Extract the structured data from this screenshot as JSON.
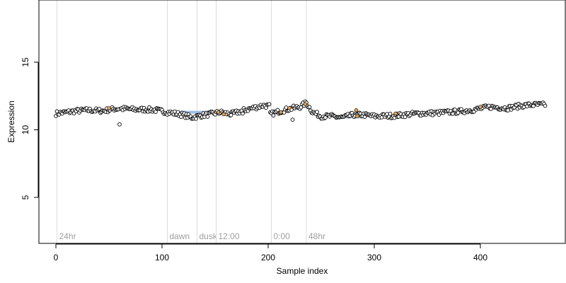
{
  "chart_data": {
    "type": "scatter",
    "xlabel": "Sample index",
    "ylabel": "Expression",
    "xlim": [
      -16,
      480
    ],
    "ylim": [
      1.6,
      19.6
    ],
    "xticks": [
      0,
      100,
      200,
      300,
      400
    ],
    "yticks": [
      5,
      10,
      15
    ],
    "grid": false,
    "colors": {
      "point_fill": "#ffffff",
      "point_stroke": "#000000",
      "vline": "#dcdcdc",
      "vline_label": "#a0a0a0",
      "orange": "#e8a04f",
      "blue": "#8fb4e3"
    },
    "vlines": [
      {
        "x": 1,
        "label": "24hr"
      },
      {
        "x": 105,
        "label": "dawn"
      },
      {
        "x": 133,
        "label": "dusk"
      },
      {
        "x": 151,
        "label": "12:00"
      },
      {
        "x": 203,
        "label": "0:00"
      },
      {
        "x": 236,
        "label": "48hr"
      }
    ],
    "trend_knots": [
      [
        0,
        11.2
      ],
      [
        10,
        11.3
      ],
      [
        20,
        11.4
      ],
      [
        30,
        11.45
      ],
      [
        45,
        11.4
      ],
      [
        55,
        11.55
      ],
      [
        65,
        11.55
      ],
      [
        75,
        11.5
      ],
      [
        85,
        11.5
      ],
      [
        95,
        11.45
      ],
      [
        105,
        11.3
      ],
      [
        113,
        11.2
      ],
      [
        120,
        11.1
      ],
      [
        128,
        10.9
      ],
      [
        136,
        11.05
      ],
      [
        145,
        11.15
      ],
      [
        155,
        11.3
      ],
      [
        165,
        11.15
      ],
      [
        175,
        11.4
      ],
      [
        185,
        11.6
      ],
      [
        195,
        11.8
      ],
      [
        201,
        11.75
      ],
      [
        202,
        11.15
      ],
      [
        210,
        11.35
      ],
      [
        220,
        11.55
      ],
      [
        230,
        11.7
      ],
      [
        236,
        12.0
      ],
      [
        242,
        11.3
      ],
      [
        250,
        11.0
      ],
      [
        260,
        11.0
      ],
      [
        270,
        10.9
      ],
      [
        280,
        11.1
      ],
      [
        290,
        11.1
      ],
      [
        300,
        11.0
      ],
      [
        320,
        11.05
      ],
      [
        340,
        11.2
      ],
      [
        360,
        11.25
      ],
      [
        380,
        11.35
      ],
      [
        395,
        11.5
      ],
      [
        410,
        11.7
      ],
      [
        425,
        11.6
      ],
      [
        440,
        11.8
      ],
      [
        450,
        11.85
      ],
      [
        461,
        11.85
      ]
    ],
    "outliers": [
      {
        "x": 60,
        "y": 10.4
      },
      {
        "x": 223,
        "y": 10.75
      },
      {
        "x": 176,
        "y": 11.2
      }
    ],
    "orange_points": [
      {
        "x": 50,
        "y": 11.6
      },
      {
        "x": 153,
        "y": 11.3
      },
      {
        "x": 158,
        "y": 11.15
      },
      {
        "x": 212,
        "y": 11.3
      },
      {
        "x": 220,
        "y": 11.6
      },
      {
        "x": 235,
        "y": 11.9
      },
      {
        "x": 283,
        "y": 11.45
      },
      {
        "x": 284,
        "y": 11.0
      },
      {
        "x": 320,
        "y": 11.2
      },
      {
        "x": 400,
        "y": 11.7
      }
    ],
    "blue_segments": [
      {
        "x1": 110,
        "x2": 152,
        "y": 11.3
      },
      {
        "x1": 270,
        "x2": 286,
        "y": 10.95
      },
      {
        "x1": 330,
        "x2": 365,
        "y": 11.25
      }
    ]
  }
}
